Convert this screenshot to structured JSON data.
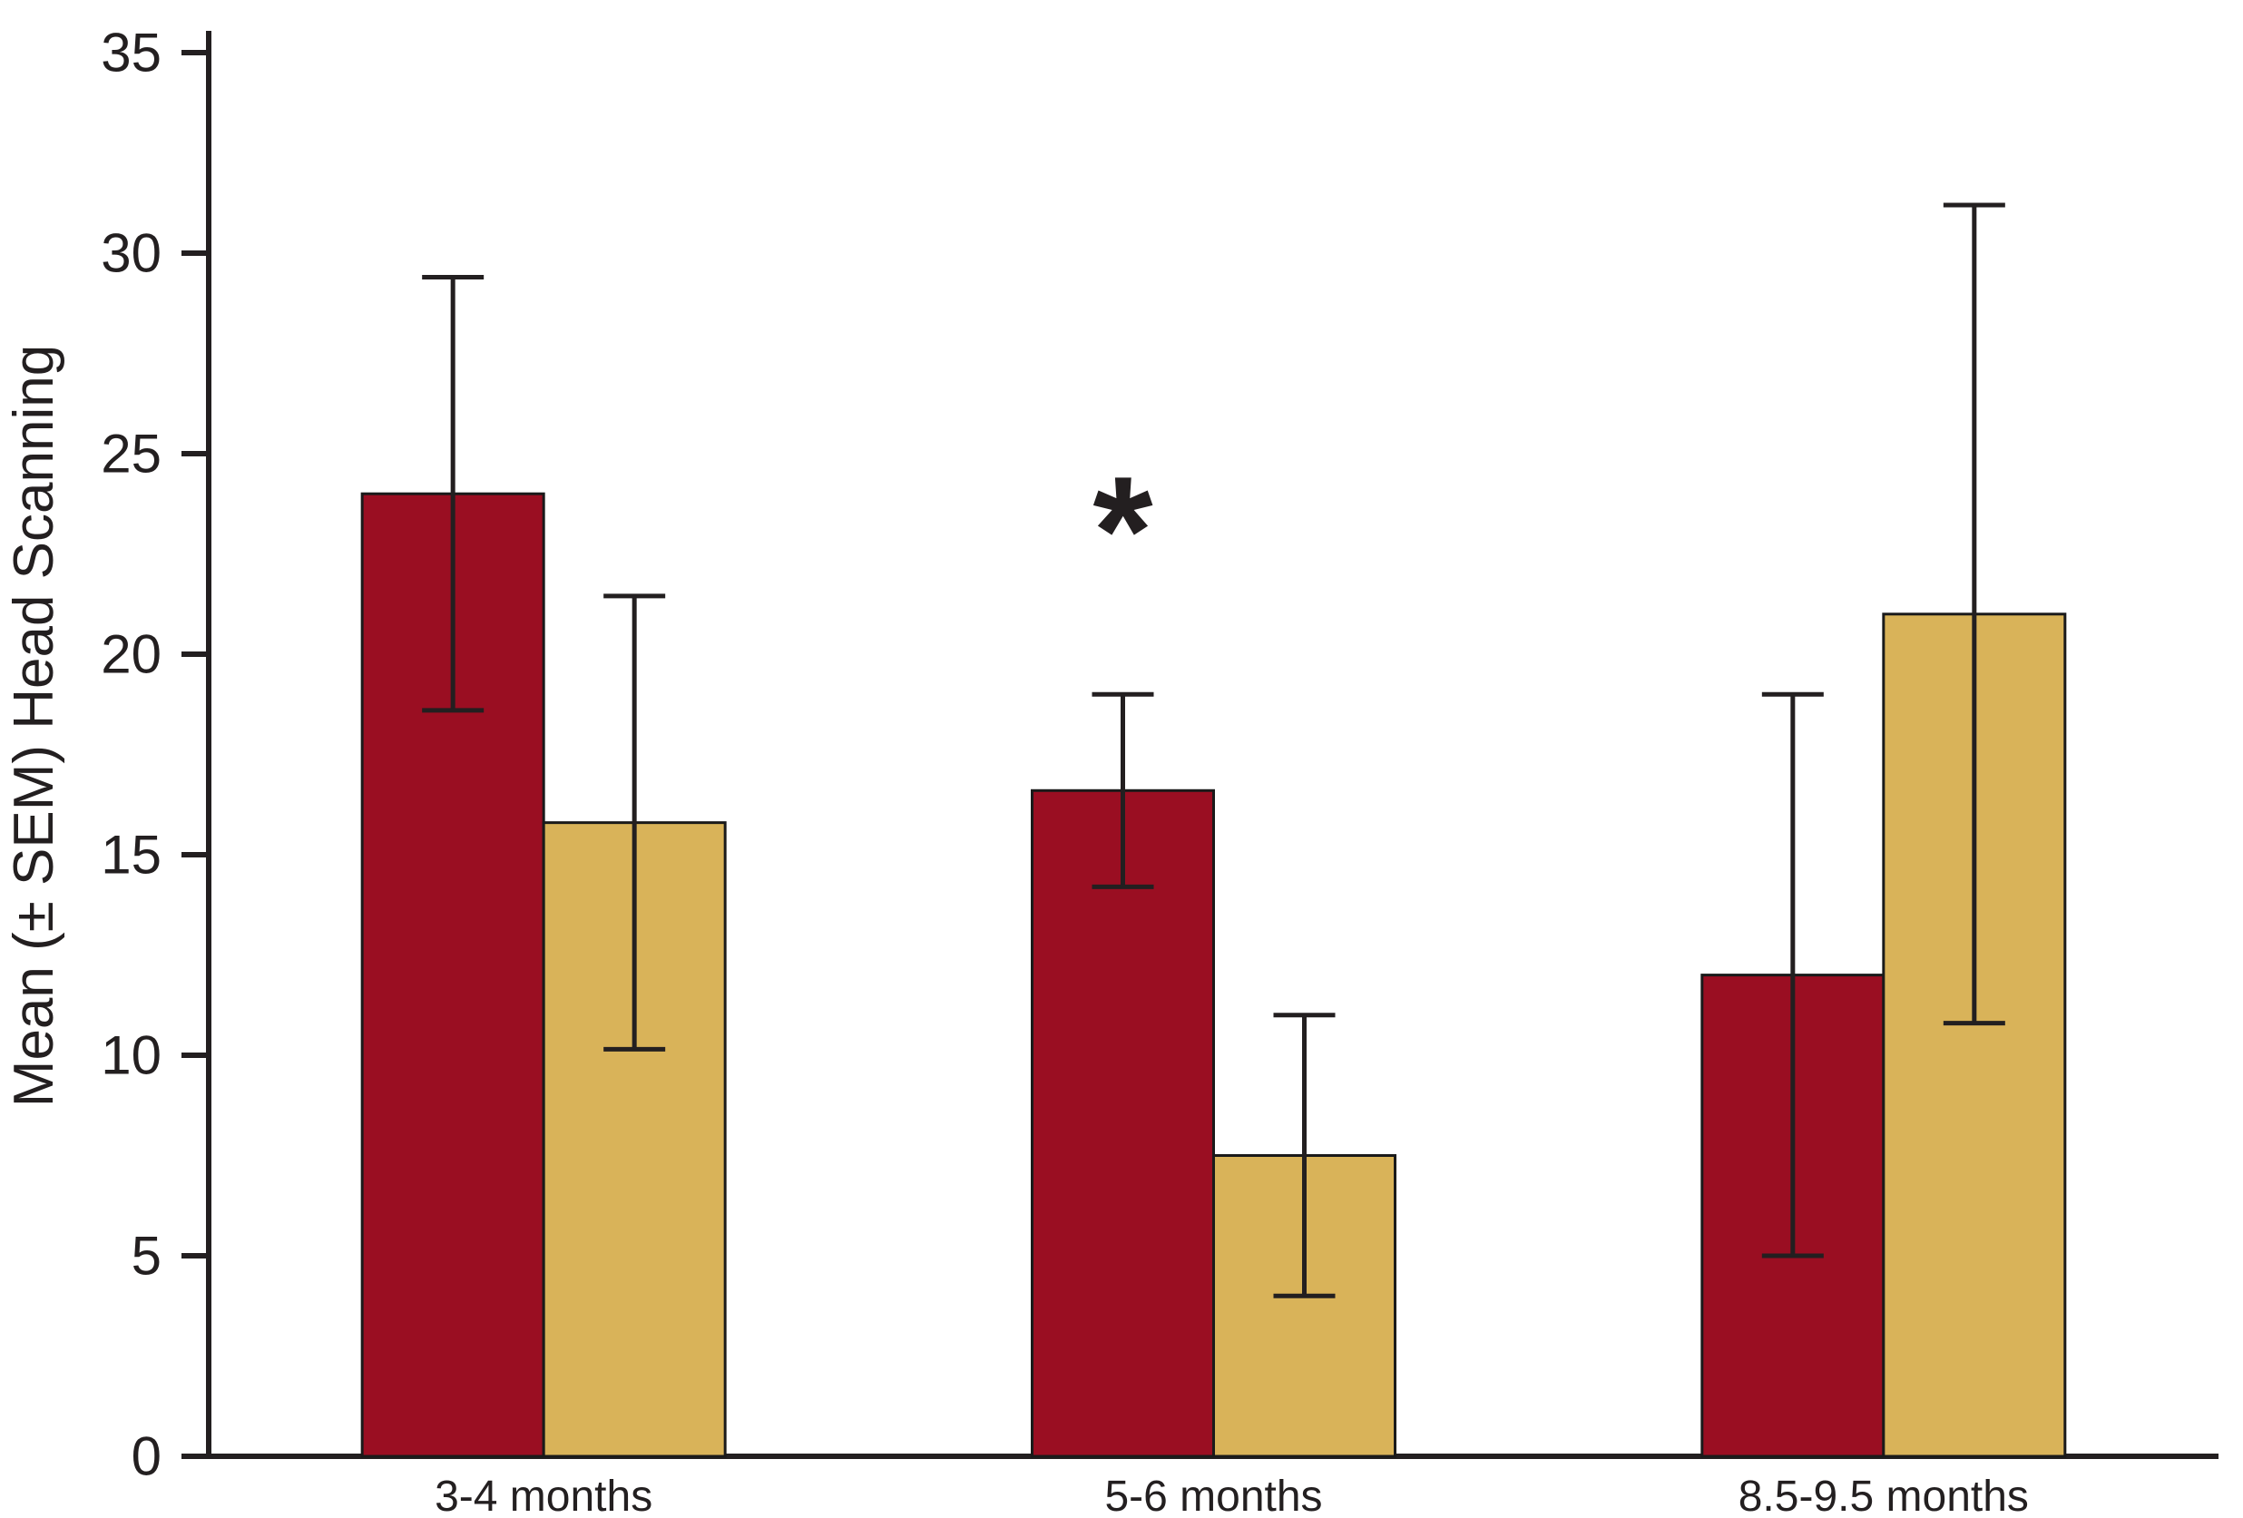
{
  "chart_data": {
    "type": "bar",
    "title": "",
    "xlabel": "",
    "ylabel": "Mean (± SEM) Head Scanning",
    "ylim": [
      0,
      35
    ],
    "yticks": [
      0,
      5,
      10,
      15,
      20,
      25,
      30,
      35
    ],
    "grid": false,
    "legend": "none",
    "categories": [
      "3-4 months",
      "5-6 months",
      "8.5-9.5 months"
    ],
    "series": [
      {
        "name": "dark-red-bars",
        "color": "#9a0e22",
        "values": [
          24.0,
          16.6,
          12.0
        ],
        "sem": [
          5.4,
          2.4,
          7.0
        ]
      },
      {
        "name": "tan-bars",
        "color": "#d9b359",
        "values": [
          15.8,
          7.5,
          21.0
        ],
        "sem": [
          5.65,
          3.5,
          10.2
        ]
      }
    ],
    "annotations": [
      {
        "text": "*",
        "meaning": "significance-marker",
        "category_index": 1,
        "series_index": 0,
        "y_value": 23
      }
    ]
  },
  "style": {
    "axis_color": "#231f20",
    "bar_outline_color": "#1a1a1a",
    "error_bar_color": "#231f20",
    "text_color": "#231f20",
    "background": "#ffffff"
  }
}
